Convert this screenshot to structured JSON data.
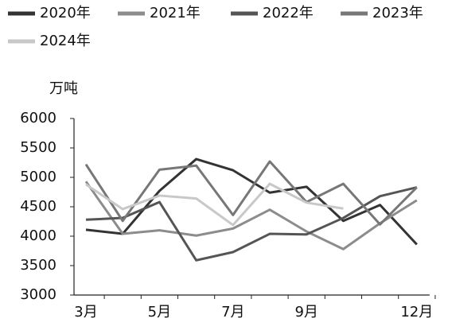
{
  "chart_data": {
    "type": "line",
    "y_label": "万吨",
    "categories": [
      "3月",
      null,
      "5月",
      null,
      "7月",
      null,
      "9月",
      null,
      null,
      "12月"
    ],
    "series": [
      {
        "name": "2020年",
        "color": "#333333",
        "values": [
          4110,
          4040,
          4770,
          5310,
          5120,
          4740,
          4840,
          4260,
          4530,
          3860
        ]
      },
      {
        "name": "2021年",
        "color": "#8c8c8c",
        "values": [
          4930,
          4040,
          4100,
          4010,
          4130,
          4450,
          4080,
          3780,
          4220,
          4610
        ]
      },
      {
        "name": "2022年",
        "color": "#555555",
        "values": [
          4280,
          4310,
          4580,
          3590,
          3730,
          4040,
          4030,
          4310,
          4680,
          4830
        ]
      },
      {
        "name": "2023年",
        "color": "#777777",
        "values": [
          5220,
          4260,
          5130,
          5200,
          4360,
          5270,
          4580,
          4890,
          4200,
          4830
        ]
      },
      {
        "name": "2024年",
        "color": "#c8c8c8",
        "values": [
          4880,
          4460,
          4690,
          4640,
          4190,
          4890,
          4570,
          4470,
          null,
          null
        ]
      }
    ],
    "ylim": [
      3000,
      6000
    ],
    "yticks": [
      3000,
      3500,
      4000,
      4500,
      5000,
      5500,
      6000
    ]
  }
}
